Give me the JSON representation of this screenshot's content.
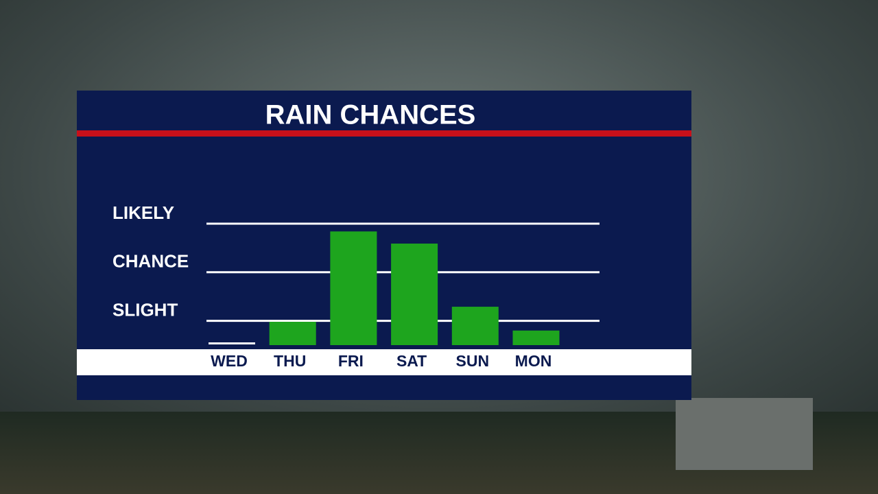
{
  "chart_data": {
    "type": "bar",
    "title": "RAIN CHANCES",
    "categories": [
      "WED",
      "THU",
      "FRI",
      "SAT",
      "SUN",
      "MON"
    ],
    "values": [
      0.5,
      0.98,
      2.84,
      2.59,
      1.29,
      0.8
    ],
    "color": "#1ea51e",
    "ylim": [
      0.5,
      3.5
    ],
    "yticks": [
      {
        "value": 1,
        "label": "SLIGHT"
      },
      {
        "value": 2,
        "label": "CHANCE"
      },
      {
        "value": 3,
        "label": "LIKELY"
      }
    ],
    "grid": true
  }
}
